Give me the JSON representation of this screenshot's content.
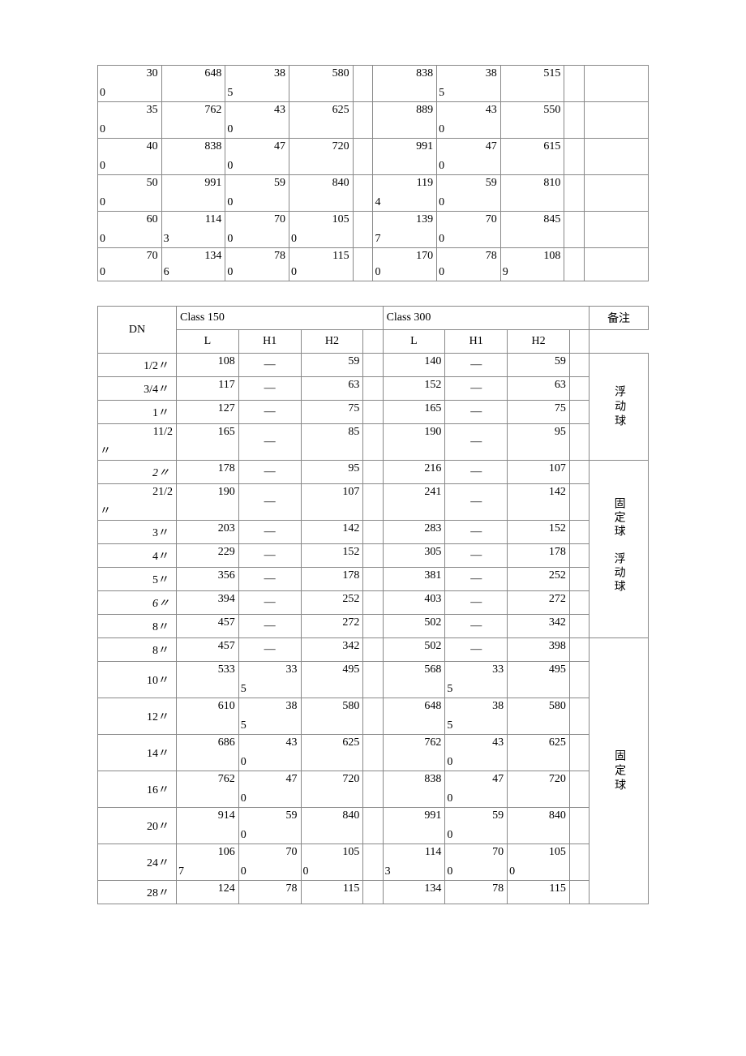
{
  "table1": {
    "col_widths_pct": [
      9.5,
      9.5,
      9.5,
      9.5,
      3,
      9.5,
      9.5,
      9.5,
      3,
      9.5
    ],
    "rows": [
      {
        "cells": [
          "30/0",
          "648",
          "38/5",
          "580",
          "",
          "838",
          "38/5",
          "515",
          "",
          ""
        ]
      },
      {
        "cells": [
          "35/0",
          "762",
          "43/0",
          "625",
          "",
          "889",
          "43/0",
          "550",
          "",
          ""
        ]
      },
      {
        "cells": [
          "40/0",
          "838",
          "47/0",
          "720",
          "",
          "991",
          "47/0",
          "615",
          "",
          ""
        ]
      },
      {
        "cells": [
          "50/0",
          "991",
          "59/0",
          "840",
          "",
          "119/4",
          "59/0",
          "810",
          "",
          ""
        ]
      },
      {
        "cells": [
          "60/0",
          "114/3",
          "70/0",
          "105/0",
          "",
          "139/7",
          "70/0",
          "845",
          "",
          ""
        ]
      },
      {
        "cells": [
          "70/0",
          "134/6",
          "78/0",
          "115/0",
          "",
          "170/0",
          "78/0",
          "108/9",
          "",
          ""
        ]
      }
    ]
  },
  "table2": {
    "headers": {
      "dn": "DN",
      "class150": "Class 150",
      "class300": "Class 300",
      "beizhu": "备注",
      "L": "L",
      "H1": "H1",
      "H2": "H2"
    },
    "col_widths_pct": [
      12,
      9.5,
      9.5,
      9.5,
      3,
      9.5,
      9.5,
      9.5,
      3,
      9
    ],
    "sections": [
      {
        "note": "浮动球",
        "rows": [
          {
            "dn": "1/2〃",
            "c150": [
              "108",
              "—",
              "59"
            ],
            "c300": [
              "140",
              "—",
              "59"
            ]
          },
          {
            "dn": "3/4〃",
            "c150": [
              "117",
              "—",
              "63"
            ],
            "c300": [
              "152",
              "—",
              "63"
            ]
          },
          {
            "dn": "1〃",
            "c150": [
              "127",
              "—",
              "75"
            ],
            "c300": [
              "165",
              "—",
              "75"
            ]
          },
          {
            "dn": "11/2〃",
            "wrap_dn": true,
            "c150": [
              "165",
              "—",
              "85"
            ],
            "c300": [
              "190",
              "—",
              "95"
            ],
            "tall": true
          }
        ]
      },
      {
        "note_left": "固定球",
        "note_right": "浮动球",
        "note_two_col": true,
        "rows": [
          {
            "dn": "2〃",
            "italic": true,
            "c150": [
              "178",
              "—",
              "95"
            ],
            "c300": [
              "216",
              "—",
              "107"
            ]
          },
          {
            "dn": "21/2〃",
            "wrap_dn": true,
            "c150": [
              "190",
              "—",
              "107"
            ],
            "c300": [
              "241",
              "—",
              "142"
            ],
            "tall": true
          },
          {
            "dn": "3〃",
            "c150": [
              "203",
              "—",
              "142"
            ],
            "c300": [
              "283",
              "—",
              "152"
            ]
          },
          {
            "dn": "4〃",
            "c150": [
              "229",
              "—",
              "152"
            ],
            "c300": [
              "305",
              "—",
              "178"
            ]
          },
          {
            "dn": "5〃",
            "c150": [
              "356",
              "—",
              "178"
            ],
            "c300": [
              "381",
              "—",
              "252"
            ]
          },
          {
            "dn": "6〃",
            "italic": true,
            "c150": [
              "394",
              "—",
              "252"
            ],
            "c300": [
              "403",
              "—",
              "272"
            ]
          },
          {
            "dn": "8〃",
            "c150": [
              "457",
              "—",
              "272"
            ],
            "c300": [
              "502",
              "—",
              "342"
            ]
          }
        ]
      },
      {
        "note": "固定球",
        "rows": [
          {
            "dn": "8〃",
            "c150": [
              "457",
              "—",
              "342"
            ],
            "c300": [
              "502",
              "—",
              "398"
            ]
          },
          {
            "dn": "10〃",
            "c150": [
              "533",
              "33/5",
              "495"
            ],
            "c300": [
              "568",
              "33/5",
              "495"
            ],
            "tall": true
          },
          {
            "dn": "12〃",
            "c150": [
              "610",
              "38/5",
              "580"
            ],
            "c300": [
              "648",
              "38/5",
              "580"
            ],
            "tall": true
          },
          {
            "dn": "14〃",
            "c150": [
              "686",
              "43/0",
              "625"
            ],
            "c300": [
              "762",
              "43/0",
              "625"
            ],
            "tall": true
          },
          {
            "dn": "16〃",
            "c150": [
              "762",
              "47/0",
              "720"
            ],
            "c300": [
              "838",
              "47/0",
              "720"
            ],
            "tall": true
          },
          {
            "dn": "20〃",
            "c150": [
              "914",
              "59/0",
              "840"
            ],
            "c300": [
              "991",
              "59/0",
              "840"
            ],
            "tall": true
          },
          {
            "dn": "24〃",
            "c150": [
              "106/7",
              "70/0",
              "105/0"
            ],
            "c300": [
              "114/3",
              "70/0",
              "105/0"
            ],
            "tall": true
          },
          {
            "dn": "28〃",
            "c150": [
              "124",
              "78",
              "115"
            ],
            "c300": [
              "134",
              "78",
              "115"
            ]
          }
        ]
      }
    ]
  }
}
